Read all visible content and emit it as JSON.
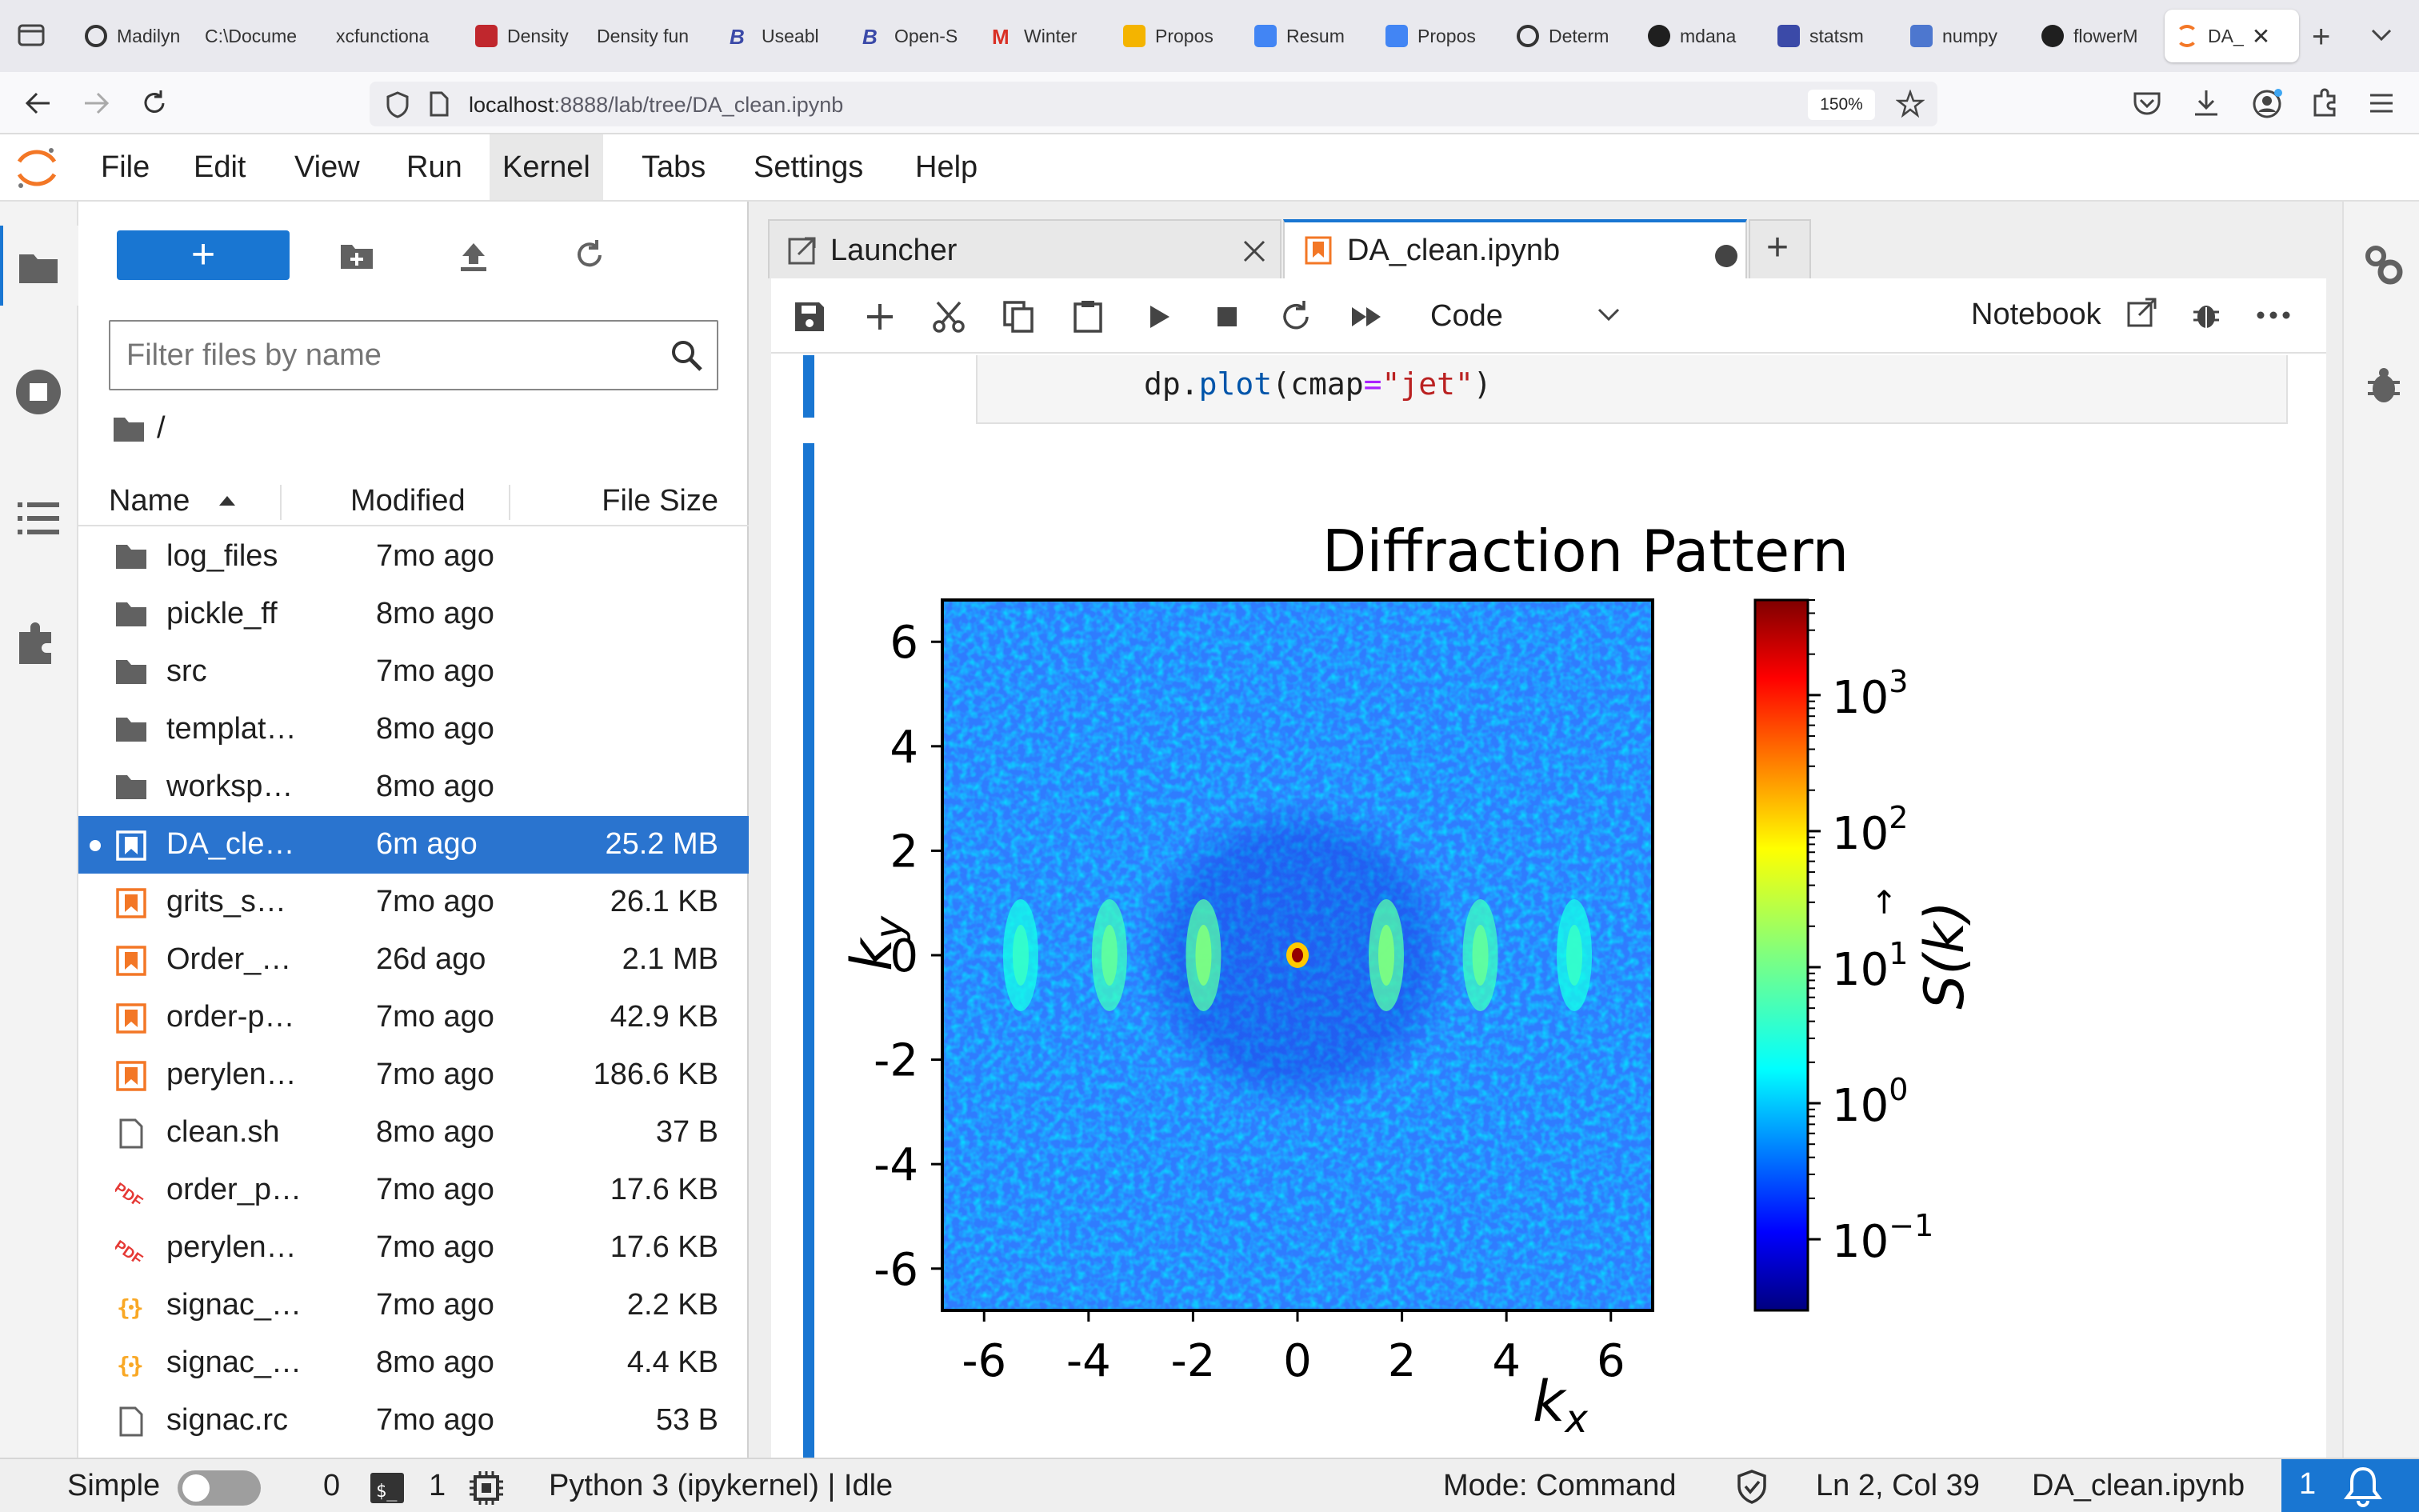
{
  "browser": {
    "tabs": [
      {
        "title": "Madilyn",
        "icon": "spiral-icon",
        "color": "#333333"
      },
      {
        "title": "C:\\Docume",
        "icon": "none",
        "color": "#333333"
      },
      {
        "title": "xcfunctiona",
        "icon": "none",
        "color": "#333333"
      },
      {
        "title": "Density",
        "icon": "red-square-icon",
        "color": "#c0272d"
      },
      {
        "title": "Density fun",
        "icon": "none",
        "color": "#333333"
      },
      {
        "title": "Useabl",
        "icon": "b-icon",
        "color": "#3b4aa8"
      },
      {
        "title": "Open-S",
        "icon": "b-icon",
        "color": "#3b4aa8"
      },
      {
        "title": "Winter",
        "icon": "gmail-icon",
        "color": "#d93025"
      },
      {
        "title": "Propos",
        "icon": "slides-icon",
        "color": "#f4b400"
      },
      {
        "title": "Resum",
        "icon": "docs-icon",
        "color": "#4285f4"
      },
      {
        "title": "Propos",
        "icon": "docs-icon",
        "color": "#4285f4"
      },
      {
        "title": "Determ",
        "icon": "pinwheel-icon",
        "color": "#333333"
      },
      {
        "title": "mdana",
        "icon": "github-icon",
        "color": "#1f1f1f"
      },
      {
        "title": "statsm",
        "icon": "statsmodels-icon",
        "color": "#3b4aa8"
      },
      {
        "title": "numpy",
        "icon": "numpy-icon",
        "color": "#4d77cf"
      },
      {
        "title": "flowerM",
        "icon": "github-icon",
        "color": "#1f1f1f"
      },
      {
        "title": "DA_",
        "icon": "jupyter-icon",
        "color": "#f37726",
        "active": true
      }
    ],
    "url_host": "localhost",
    "url_rest": ":8888/lab/tree/DA_clean.ipynb",
    "zoom": "150%"
  },
  "menu": [
    "File",
    "Edit",
    "View",
    "Run",
    "Kernel",
    "Tabs",
    "Settings",
    "Help"
  ],
  "menu_highlight": "Kernel",
  "filebrowser": {
    "new_label": "+",
    "filter_placeholder": "Filter files by name",
    "breadcrumb": "/",
    "columns": {
      "name": "Name",
      "modified": "Modified",
      "size": "File Size"
    },
    "files": [
      {
        "name": "log_files",
        "modified": "7mo ago",
        "size": "",
        "type": "folder"
      },
      {
        "name": "pickle_ff",
        "modified": "8mo ago",
        "size": "",
        "type": "folder"
      },
      {
        "name": "src",
        "modified": "7mo ago",
        "size": "",
        "type": "folder"
      },
      {
        "name": "templat…",
        "modified": "8mo ago",
        "size": "",
        "type": "folder"
      },
      {
        "name": "worksp…",
        "modified": "8mo ago",
        "size": "",
        "type": "folder"
      },
      {
        "name": "DA_cle…",
        "modified": "6m ago",
        "size": "25.2 MB",
        "type": "notebook",
        "selected": true,
        "running": true
      },
      {
        "name": "grits_s…",
        "modified": "7mo ago",
        "size": "26.1 KB",
        "type": "notebook"
      },
      {
        "name": "Order_…",
        "modified": "26d ago",
        "size": "2.1 MB",
        "type": "notebook"
      },
      {
        "name": "order-p…",
        "modified": "7mo ago",
        "size": "42.9 KB",
        "type": "notebook"
      },
      {
        "name": "perylen…",
        "modified": "7mo ago",
        "size": "186.6 KB",
        "type": "notebook"
      },
      {
        "name": "clean.sh",
        "modified": "8mo ago",
        "size": "37 B",
        "type": "file"
      },
      {
        "name": "order_p…",
        "modified": "7mo ago",
        "size": "17.6 KB",
        "type": "pdf"
      },
      {
        "name": "perylen…",
        "modified": "7mo ago",
        "size": "17.6 KB",
        "type": "pdf"
      },
      {
        "name": "signac_…",
        "modified": "7mo ago",
        "size": "2.2 KB",
        "type": "json"
      },
      {
        "name": "signac_…",
        "modified": "8mo ago",
        "size": "4.4 KB",
        "type": "json"
      },
      {
        "name": "signac.rc",
        "modified": "7mo ago",
        "size": "53 B",
        "type": "file"
      }
    ]
  },
  "doc_tabs": [
    {
      "label": "Launcher",
      "active": false
    },
    {
      "label": "DA_clean.ipynb",
      "active": true,
      "unsaved": true
    }
  ],
  "toolbar": {
    "cell_type": "Code",
    "notebook_label": "Notebook"
  },
  "code": {
    "obj": "dp",
    "fn": "plot",
    "arg": "cmap",
    "val": "\"jet\""
  },
  "chart_data": {
    "type": "heatmap",
    "title": "Diffraction Pattern",
    "xlabel": "k_x",
    "ylabel": "k_y",
    "colorbar_label": "S(k⃗)",
    "colormap": "jet",
    "xlim": [
      -6.8,
      6.8
    ],
    "ylim": [
      -6.8,
      6.8
    ],
    "xticks": [
      -6,
      -4,
      -2,
      0,
      2,
      4,
      6
    ],
    "yticks": [
      6,
      4,
      2,
      0,
      -2,
      -4,
      -6
    ],
    "colorbar_scale": "log",
    "colorbar_range": [
      0.03,
      5000
    ],
    "colorbar_ticks": [
      {
        "base": "10",
        "exp": "3",
        "value": 1000
      },
      {
        "base": "10",
        "exp": "2",
        "value": 100
      },
      {
        "base": "10",
        "exp": "1",
        "value": 10
      },
      {
        "base": "10",
        "exp": "0",
        "value": 1
      },
      {
        "base": "10",
        "exp": "−1",
        "value": 0.1
      }
    ],
    "peaks": [
      {
        "kx": 0,
        "ky": 0,
        "value": 4000
      },
      {
        "kx": -1.8,
        "ky": 0,
        "value": 12
      },
      {
        "kx": 1.7,
        "ky": 0,
        "value": 12
      },
      {
        "kx": -3.6,
        "ky": 0,
        "value": 8
      },
      {
        "kx": 3.5,
        "ky": 0,
        "value": 8
      },
      {
        "kx": -5.3,
        "ky": 0,
        "value": 4
      },
      {
        "kx": 5.3,
        "ky": 0,
        "value": 4
      }
    ]
  },
  "status": {
    "mode_label": "Simple",
    "terminals": "0",
    "kernels": "1",
    "kernel": "Python 3 (ipykernel) | Idle",
    "mode": "Mode: Command",
    "cursor": "Ln 2, Col 39",
    "file": "DA_clean.ipynb",
    "notifications": "1"
  }
}
